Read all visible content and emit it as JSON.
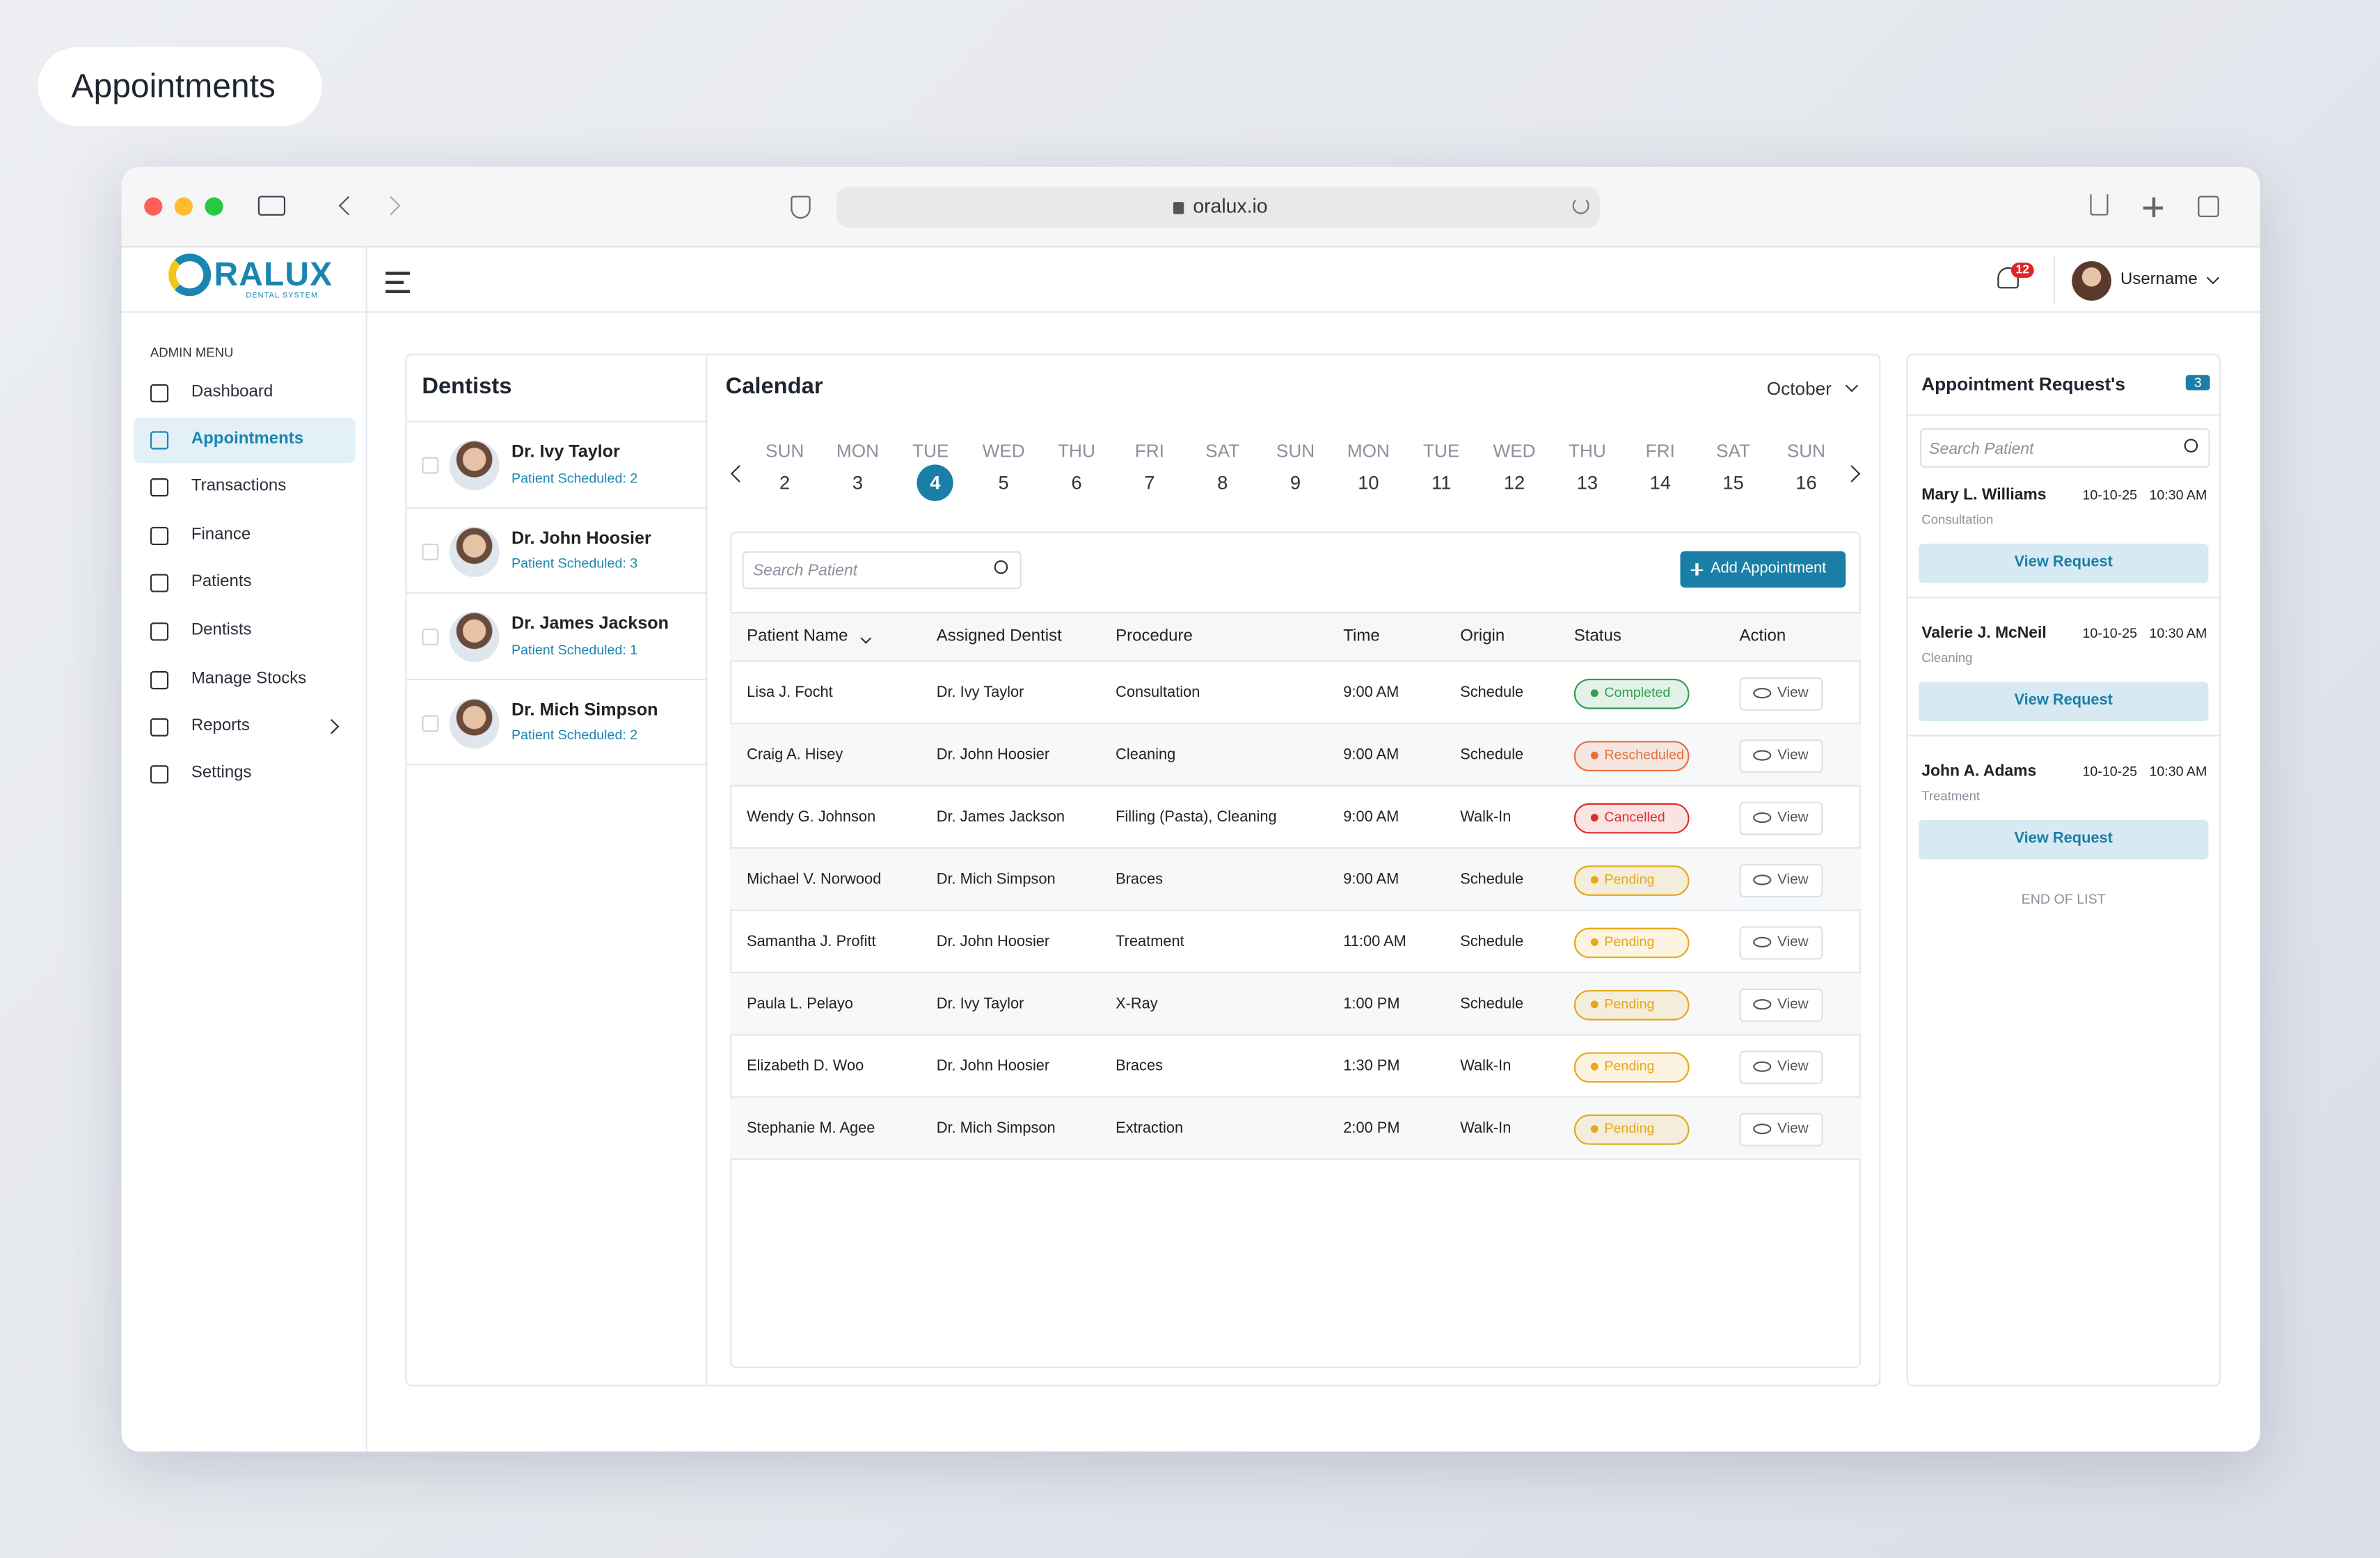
{
  "page_label": "Appointments",
  "browser": {
    "url": "oralux.io"
  },
  "header": {
    "brand": "RALUX",
    "tagline": "DENTAL SYSTEM",
    "notifications": 12,
    "user": "Username"
  },
  "sidebar": {
    "title": "ADMIN MENU",
    "items": [
      {
        "label": "Dashboard"
      },
      {
        "label": "Appointments",
        "active": true
      },
      {
        "label": "Transactions"
      },
      {
        "label": "Finance"
      },
      {
        "label": "Patients"
      },
      {
        "label": "Dentists"
      },
      {
        "label": "Manage Stocks"
      },
      {
        "label": "Reports"
      },
      {
        "label": "Settings"
      }
    ]
  },
  "dentists": {
    "title": "Dentists",
    "items": [
      {
        "name": "Dr. Ivy Taylor",
        "scheduled": "Patient Scheduled: 2"
      },
      {
        "name": "Dr. John Hoosier",
        "scheduled": "Patient Scheduled: 3"
      },
      {
        "name": "Dr. James Jackson",
        "scheduled": "Patient Scheduled: 1"
      },
      {
        "name": "Dr. Mich Simpson",
        "scheduled": "Patient Scheduled: 2"
      }
    ]
  },
  "calendar": {
    "title": "Calendar",
    "month": "October",
    "days": [
      {
        "day": "SUN",
        "date": 2
      },
      {
        "day": "MON",
        "date": 3
      },
      {
        "day": "TUE",
        "date": 4,
        "active": true
      },
      {
        "day": "WED",
        "date": 5
      },
      {
        "day": "THU",
        "date": 6
      },
      {
        "day": "FRI",
        "date": 7
      },
      {
        "day": "SAT",
        "date": 8
      },
      {
        "day": "SUN",
        "date": 9
      },
      {
        "day": "MON",
        "date": 10
      },
      {
        "day": "TUE",
        "date": 11
      },
      {
        "day": "WED",
        "date": 12
      },
      {
        "day": "THU",
        "date": 13
      },
      {
        "day": "FRI",
        "date": 14
      },
      {
        "day": "SAT",
        "date": 15
      },
      {
        "day": "SUN",
        "date": 16
      }
    ]
  },
  "appointments": {
    "search": "Search Patient",
    "add_button": "Add Appointment",
    "columns": [
      "Patient Name",
      "Assigned Dentist",
      "Procedure",
      "Time",
      "Origin",
      "Status",
      "Action"
    ],
    "action": "View",
    "rows": [
      {
        "patient": "Lisa J. Focht",
        "dentist": "Dr. Ivy Taylor",
        "procedure": "Consultation",
        "time": "9:00 AM",
        "origin": "Schedule",
        "status": {
          "label": "Completed",
          "color": "#2e9e4f"
        }
      },
      {
        "patient": "Craig A. Hisey",
        "dentist": "Dr. John Hoosier",
        "procedure": "Cleaning",
        "time": "9:00 AM",
        "origin": "Schedule",
        "status": {
          "label": "Rescheduled",
          "color": "#e8703a"
        }
      },
      {
        "patient": "Wendy G. Johnson",
        "dentist": "Dr. James Jackson",
        "procedure": "Filling (Pasta), Cleaning",
        "time": "9:00 AM",
        "origin": "Walk-In",
        "status": {
          "label": "Cancelled",
          "color": "#d9302c"
        }
      },
      {
        "patient": "Michael V. Norwood",
        "dentist": "Dr. Mich Simpson",
        "procedure": "Braces",
        "time": "9:00 AM",
        "origin": "Schedule",
        "status": {
          "label": "Pending",
          "color": "#e6a817"
        }
      },
      {
        "patient": "Samantha J. Profitt",
        "dentist": "Dr. John Hoosier",
        "procedure": "Treatment",
        "time": "11:00 AM",
        "origin": "Schedule",
        "status": {
          "label": "Pending",
          "color": "#e6a817"
        }
      },
      {
        "patient": "Paula L. Pelayo",
        "dentist": "Dr. Ivy Taylor",
        "procedure": "X-Ray",
        "time": "1:00 PM",
        "origin": "Schedule",
        "status": {
          "label": "Pending",
          "color": "#e6a817"
        }
      },
      {
        "patient": "Elizabeth D. Woo",
        "dentist": "Dr. John Hoosier",
        "procedure": "Braces",
        "time": "1:30 PM",
        "origin": "Walk-In",
        "status": {
          "label": "Pending",
          "color": "#e6a817"
        }
      },
      {
        "patient": "Stephanie M. Agee",
        "dentist": "Dr. Mich Simpson",
        "procedure": "Extraction",
        "time": "2:00 PM",
        "origin": "Walk-In",
        "status": {
          "label": "Pending",
          "color": "#e6a817"
        }
      }
    ]
  },
  "requests": {
    "title": "Appointment Request's",
    "count": 3,
    "search": "Search Patient",
    "button": "View Request",
    "items": [
      {
        "name": "Mary L. Williams",
        "date": "10-10-25",
        "time": "10:30 AM",
        "type": "Consultation"
      },
      {
        "name": "Valerie J. McNeil",
        "date": "10-10-25",
        "time": "10:30 AM",
        "type": "Cleaning"
      },
      {
        "name": "John A. Adams",
        "date": "10-10-25",
        "time": "10:30 AM",
        "type": "Treatment"
      }
    ],
    "footer": "END OF LIST"
  }
}
